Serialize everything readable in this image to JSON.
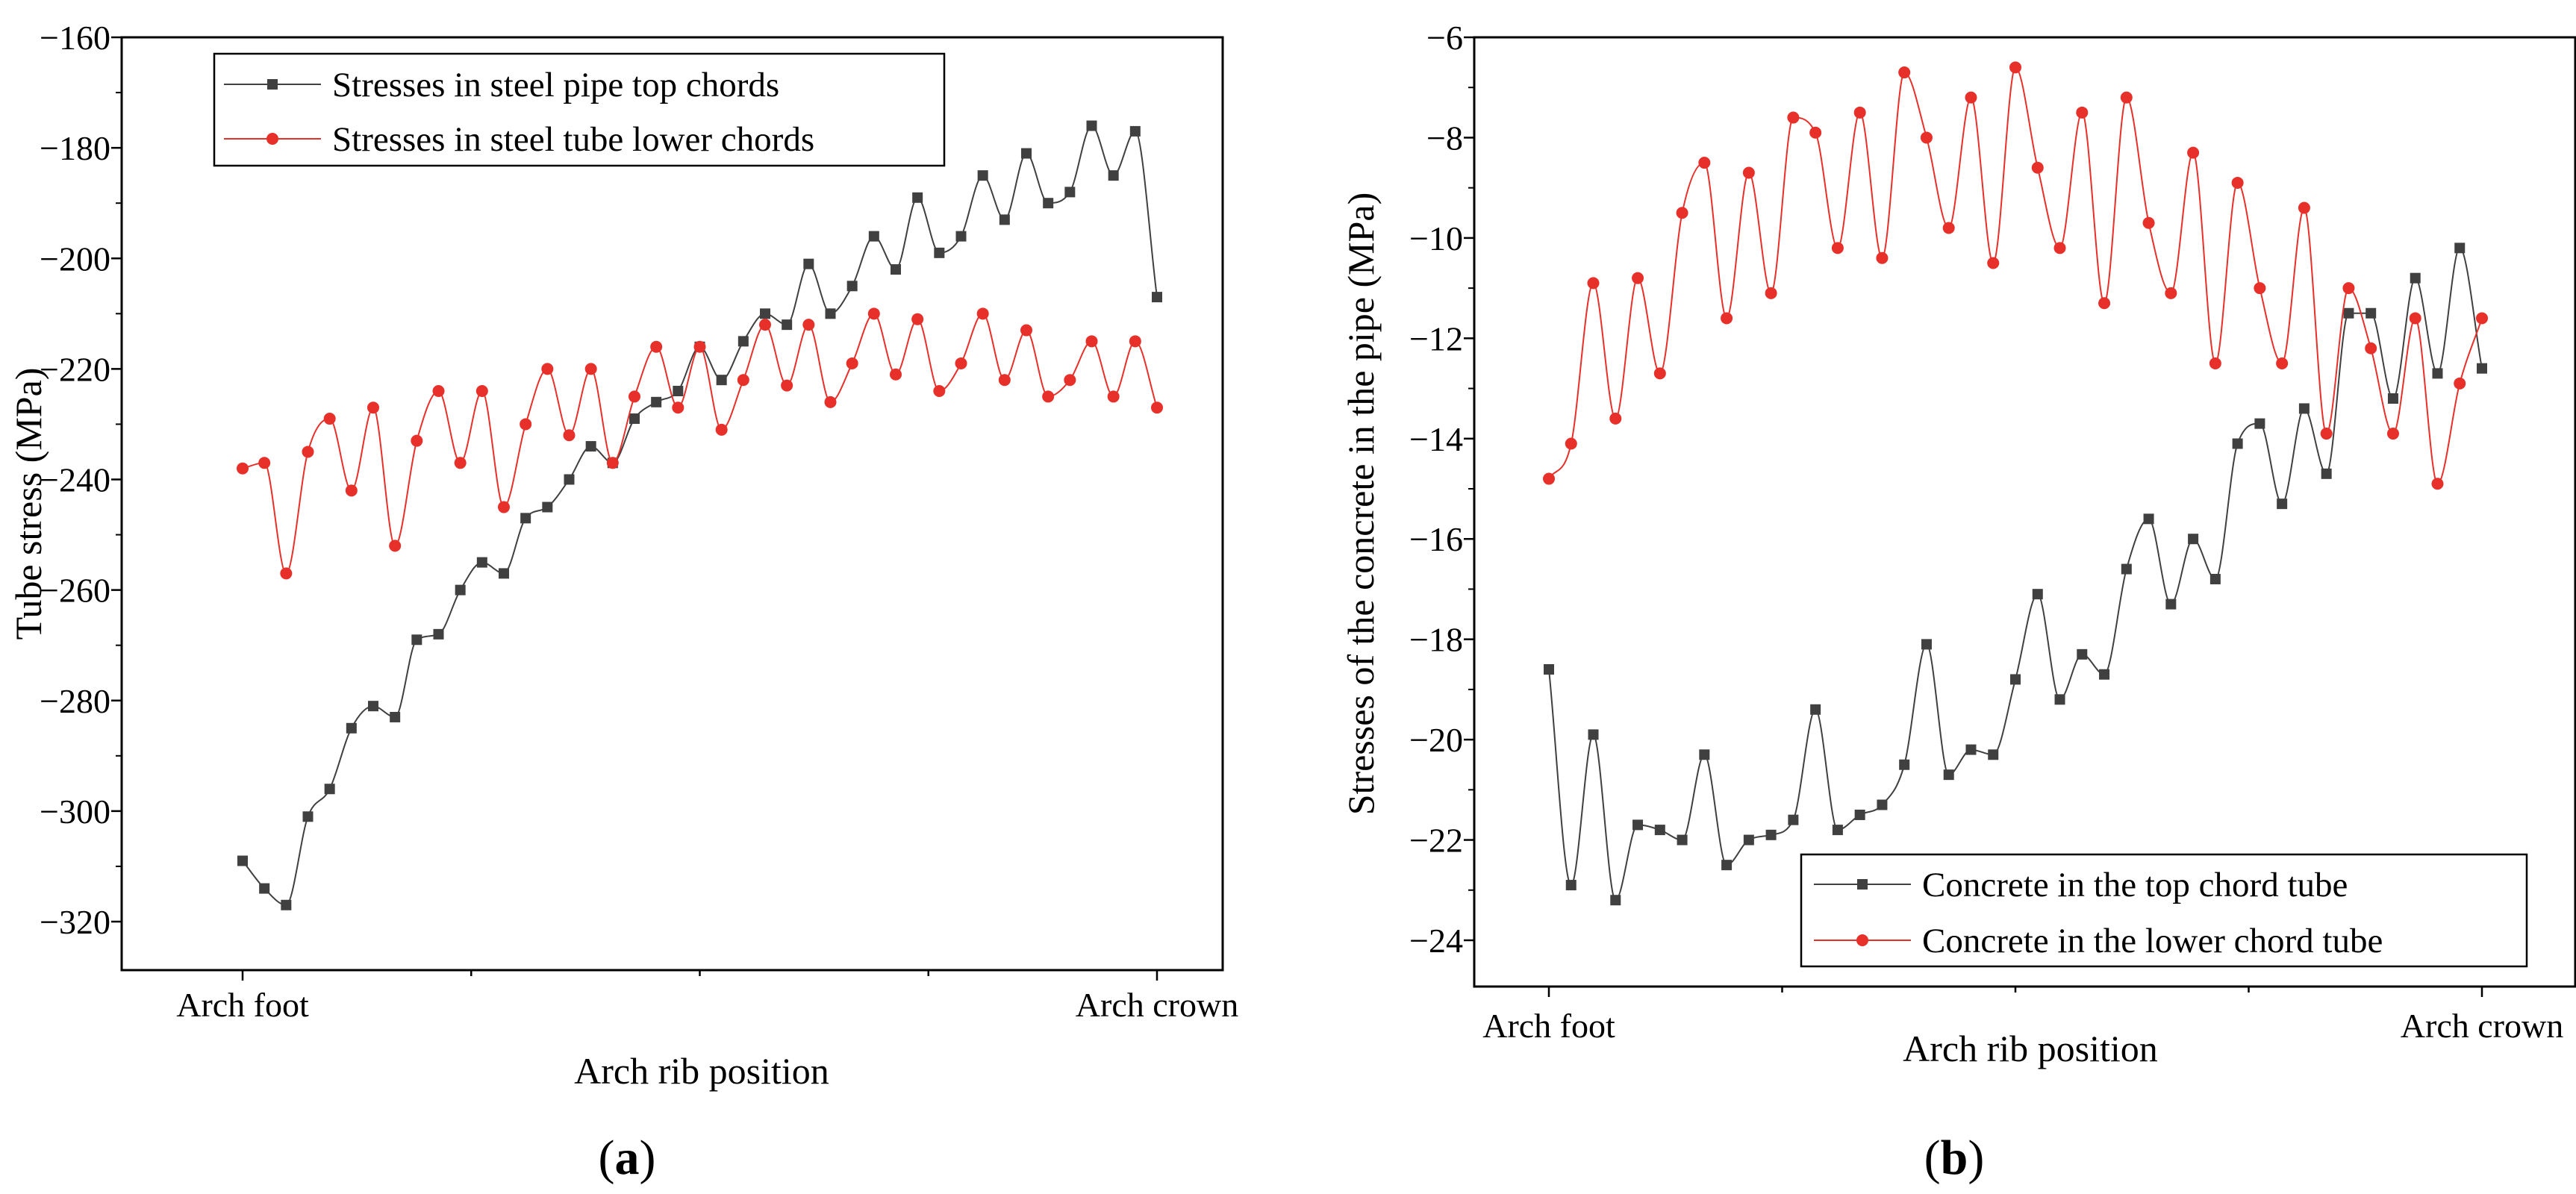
{
  "chart_data": [
    {
      "panel": "(a)",
      "panel_letter": "a",
      "type": "line",
      "xlabel": "Arch rib position",
      "ylabel": "Tube stress (MPa)",
      "x_tick_labels": [
        "Arch foot",
        "Arch crown"
      ],
      "ylim": [
        -330,
        -160
      ],
      "yticks": [
        -160,
        -180,
        -200,
        -220,
        -240,
        -260,
        -280,
        -300,
        -320
      ],
      "legend_position": "top-left",
      "series": [
        {
          "name": "Stresses in steel pipe top chords",
          "color": "#404040",
          "marker": "square",
          "x": [
            0,
            1,
            2,
            3,
            4,
            5,
            6,
            7,
            8,
            9,
            10,
            11,
            12,
            13,
            14,
            15,
            16,
            17,
            18,
            19,
            20,
            21,
            22,
            23,
            24,
            25,
            26,
            27,
            28,
            29,
            30,
            31,
            32,
            33,
            34,
            35,
            36,
            37,
            38,
            39,
            40,
            41,
            42
          ],
          "values": [
            -309,
            -314,
            -317,
            -301,
            -296,
            -285,
            -281,
            -283,
            -269,
            -268,
            -260,
            -255,
            -257,
            -247,
            -245,
            -240,
            -234,
            -237,
            -229,
            -226,
            -224,
            -216,
            -222,
            -215,
            -210,
            -212,
            -201,
            -210,
            -205,
            -196,
            -202,
            -189,
            -199,
            -196,
            -185,
            -193,
            -181,
            -190,
            -188,
            -176,
            -185,
            -177,
            -207
          ]
        },
        {
          "name": "Stresses in steel tube lower chords",
          "color": "#e8302a",
          "marker": "circle",
          "x": [
            0,
            1,
            2,
            3,
            4,
            5,
            6,
            7,
            8,
            9,
            10,
            11,
            12,
            13,
            14,
            15,
            16,
            17,
            18,
            19,
            20,
            21,
            22,
            23,
            24,
            25,
            26,
            27,
            28,
            29,
            30,
            31,
            32,
            33,
            34,
            35,
            36,
            37,
            38,
            39,
            40,
            41,
            42
          ],
          "values": [
            -238,
            -237,
            -257,
            -235,
            -229,
            -242,
            -227,
            -252,
            -233,
            -224,
            -237,
            -224,
            -245,
            -230,
            -220,
            -232,
            -220,
            -237,
            -225,
            -216,
            -227,
            -216,
            -231,
            -222,
            -212,
            -223,
            -212,
            -226,
            -219,
            -210,
            -221,
            -211,
            -224,
            -219,
            -210,
            -222,
            -213,
            -225,
            -222,
            -215,
            -225,
            -215,
            -227
          ]
        }
      ]
    },
    {
      "panel": "(b)",
      "panel_letter": "b",
      "type": "line",
      "xlabel": "Arch rib position",
      "ylabel": "Stresses of the concrete in the pipe (MPa)",
      "x_tick_labels": [
        "Arch foot",
        "Arch crown"
      ],
      "ylim": [
        -25,
        -6
      ],
      "yticks": [
        -6,
        -8,
        -10,
        -12,
        -14,
        -16,
        -18,
        -20,
        -22,
        -24
      ],
      "legend_position": "bottom-right",
      "series": [
        {
          "name": "Concrete in the top chord tube",
          "color": "#404040",
          "marker": "square",
          "x": [
            0,
            1,
            2,
            3,
            4,
            5,
            6,
            7,
            8,
            9,
            10,
            11,
            12,
            13,
            14,
            15,
            16,
            17,
            18,
            19,
            20,
            21,
            22,
            23,
            24,
            25,
            26,
            27,
            28,
            29,
            30,
            31,
            32,
            33,
            34,
            35,
            36,
            37,
            38,
            39,
            40,
            41,
            42
          ],
          "values": [
            -18.6,
            -22.9,
            -19.9,
            -23.2,
            -21.7,
            -21.8,
            -22.0,
            -20.3,
            -22.5,
            -22.0,
            -21.9,
            -21.6,
            -19.4,
            -21.8,
            -21.5,
            -21.3,
            -20.5,
            -18.1,
            -20.7,
            -20.2,
            -20.3,
            -18.8,
            -17.1,
            -19.2,
            -18.3,
            -18.7,
            -16.6,
            -15.6,
            -17.3,
            -16.0,
            -16.8,
            -14.1,
            -13.7,
            -15.3,
            -13.4,
            -14.7,
            -11.5,
            -11.5,
            -13.2,
            -10.8,
            -12.7,
            -10.2,
            -12.6
          ]
        },
        {
          "name": "Concrete in the lower chord tube",
          "color": "#e8302a",
          "marker": "circle",
          "x": [
            0,
            1,
            2,
            3,
            4,
            5,
            6,
            7,
            8,
            9,
            10,
            11,
            12,
            13,
            14,
            15,
            16,
            17,
            18,
            19,
            20,
            21,
            22,
            23,
            24,
            25,
            26,
            27,
            28,
            29,
            30,
            31,
            32,
            33,
            34,
            35,
            36,
            37,
            38,
            39,
            40,
            41,
            42
          ],
          "values": [
            -14.8,
            -14.1,
            -10.9,
            -13.6,
            -10.8,
            -12.7,
            -9.5,
            -8.5,
            -11.6,
            -8.7,
            -11.1,
            -7.6,
            -7.9,
            -10.2,
            -7.5,
            -10.4,
            -6.7,
            -8.0,
            -9.8,
            -7.2,
            -10.5,
            -6.6,
            -8.6,
            -10.2,
            -7.5,
            -11.3,
            -7.2,
            -9.7,
            -11.1,
            -8.3,
            -12.5,
            -8.9,
            -11.0,
            -12.5,
            -9.4,
            -13.9,
            -11.0,
            -12.2,
            -13.9,
            -11.6,
            -14.9,
            -12.9,
            -11.6
          ]
        }
      ]
    }
  ]
}
